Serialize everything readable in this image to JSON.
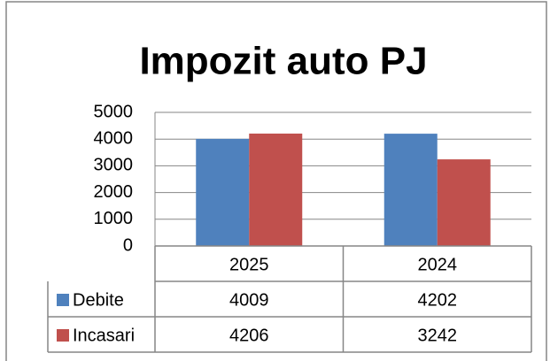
{
  "chart_data": {
    "type": "bar",
    "title": "Impozit auto PJ",
    "categories": [
      "2025",
      "2024"
    ],
    "series": [
      {
        "name": "Debite",
        "color": "#4f81bd",
        "values": [
          4009,
          4202
        ]
      },
      {
        "name": "Incasari",
        "color": "#c0504d",
        "values": [
          4206,
          3242
        ]
      }
    ],
    "ylim": [
      0,
      5000
    ],
    "yticks": [
      0,
      1000,
      2000,
      3000,
      4000,
      5000
    ],
    "grid": true,
    "data_table": true
  }
}
